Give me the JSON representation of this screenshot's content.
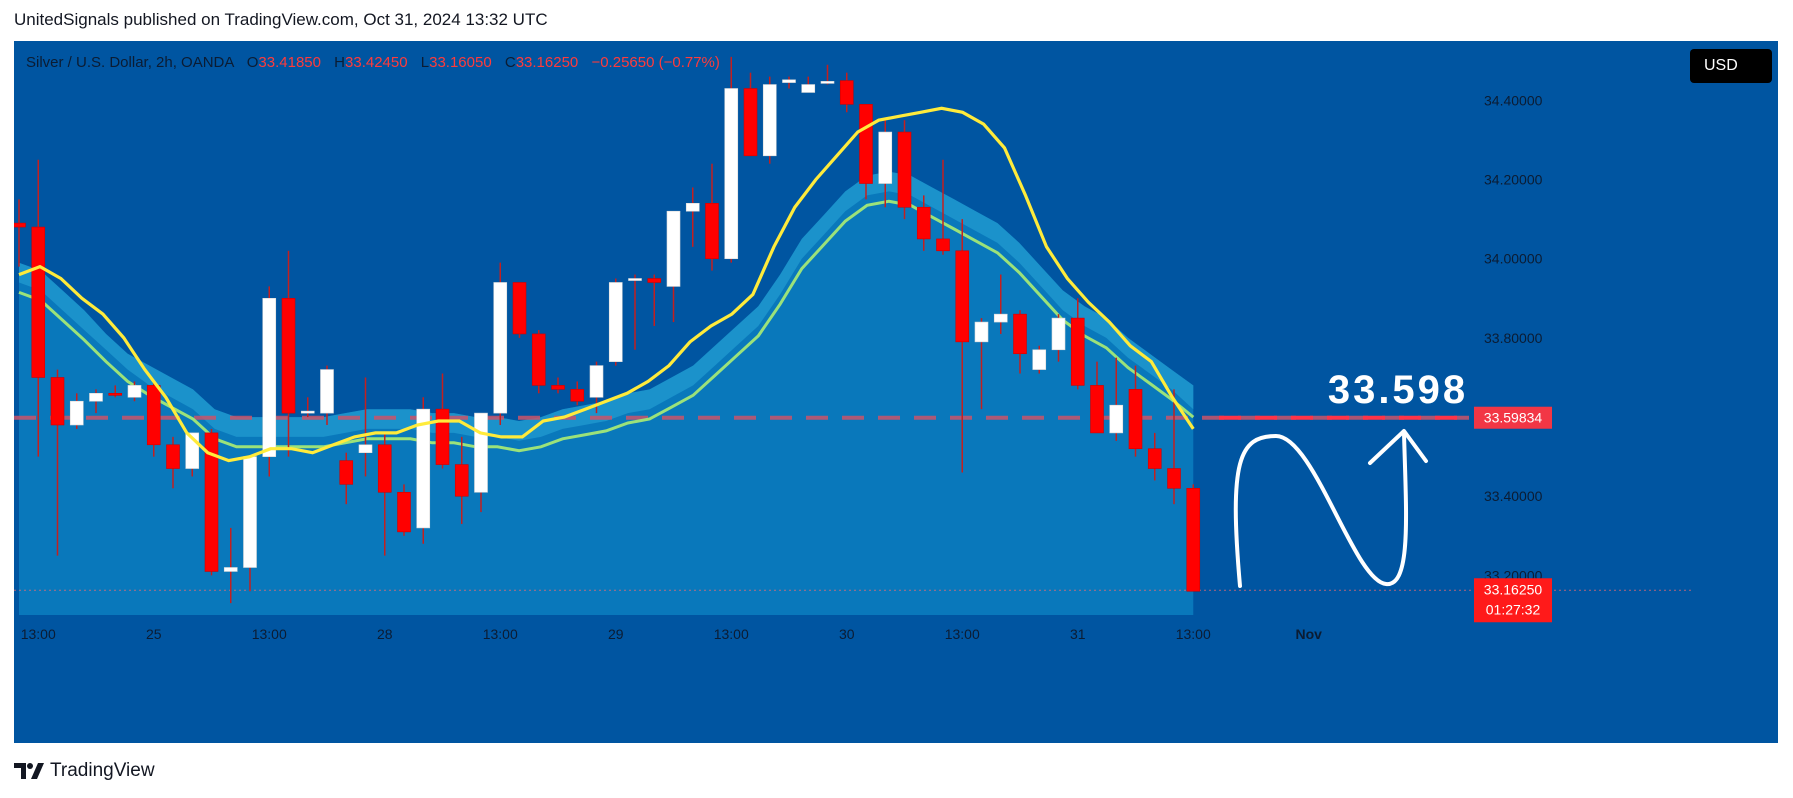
{
  "header": {
    "publisher_line": "UnitedSignals published on TradingView.com, Oct 31, 2024 13:32 UTC"
  },
  "legend": {
    "symbol": "Silver / U.S. Dollar, 2h, OANDA",
    "open_label": "O",
    "open": "33.41850",
    "high_label": "H",
    "high": "33.42450",
    "low_label": "L",
    "low": "33.16050",
    "close_label": "C",
    "close": "33.16250",
    "change": "−0.25650 (−0.77%)"
  },
  "currency_button": "USD",
  "brand": {
    "name": "TradingView"
  },
  "colors": {
    "background": "#0055a1",
    "bull": "#ffffff",
    "bear": "#ff0000",
    "wick": "#c41f1f",
    "ema_fast": "#ffeb3b",
    "ema_slow": "#9be27a",
    "band_fill": "#0a7fbf",
    "level_line": "#ff3347",
    "price_tag": "#ff1a1a",
    "level_tag": "#f23645"
  },
  "chart_data": {
    "type": "candlestick",
    "symbol": "Silver / U.S. Dollar, 2h, OANDA",
    "ylim": [
      33.1,
      34.55
    ],
    "y_ticks": [
      34.4,
      34.2,
      34.0,
      33.8,
      33.4,
      33.2
    ],
    "y_tick_labels": [
      "34.40000",
      "34.20000",
      "34.00000",
      "33.80000",
      "33.40000",
      "33.20000"
    ],
    "x_labels": [
      {
        "i": 1,
        "label": "13:00"
      },
      {
        "i": 7,
        "label": "25"
      },
      {
        "i": 13,
        "label": "13:00"
      },
      {
        "i": 19,
        "label": "28"
      },
      {
        "i": 25,
        "label": "13:00"
      },
      {
        "i": 31,
        "label": "29"
      },
      {
        "i": 37,
        "label": "13:00"
      },
      {
        "i": 43,
        "label": "30"
      },
      {
        "i": 49,
        "label": "13:00"
      },
      {
        "i": 55,
        "label": "31"
      },
      {
        "i": 61,
        "label": "13:00"
      },
      {
        "i": 67,
        "label": "Nov"
      }
    ],
    "candles": [
      {
        "o": 34.09,
        "h": 34.15,
        "l": 33.98,
        "c": 34.08
      },
      {
        "o": 34.08,
        "h": 34.25,
        "l": 33.5,
        "c": 33.7
      },
      {
        "o": 33.7,
        "h": 33.72,
        "l": 33.25,
        "c": 33.58
      },
      {
        "o": 33.58,
        "h": 33.66,
        "l": 33.57,
        "c": 33.64
      },
      {
        "o": 33.64,
        "h": 33.67,
        "l": 33.61,
        "c": 33.66
      },
      {
        "o": 33.66,
        "h": 33.68,
        "l": 33.65,
        "c": 33.655
      },
      {
        "o": 33.65,
        "h": 33.69,
        "l": 33.64,
        "c": 33.68
      },
      {
        "o": 33.68,
        "h": 33.69,
        "l": 33.5,
        "c": 33.53
      },
      {
        "o": 33.53,
        "h": 33.55,
        "l": 33.42,
        "c": 33.47
      },
      {
        "o": 33.47,
        "h": 33.56,
        "l": 33.45,
        "c": 33.56
      },
      {
        "o": 33.56,
        "h": 33.57,
        "l": 33.2,
        "c": 33.21
      },
      {
        "o": 33.21,
        "h": 33.32,
        "l": 33.13,
        "c": 33.22
      },
      {
        "o": 33.22,
        "h": 33.5,
        "l": 33.16,
        "c": 33.5
      },
      {
        "o": 33.5,
        "h": 33.93,
        "l": 33.45,
        "c": 33.9
      },
      {
        "o": 33.9,
        "h": 34.02,
        "l": 33.5,
        "c": 33.61
      },
      {
        "o": 33.61,
        "h": 33.65,
        "l": 33.6,
        "c": 33.615
      },
      {
        "o": 33.61,
        "h": 33.73,
        "l": 33.58,
        "c": 33.72
      },
      {
        "o": 33.49,
        "h": 33.51,
        "l": 33.38,
        "c": 33.43
      },
      {
        "o": 33.51,
        "h": 33.7,
        "l": 33.45,
        "c": 33.53
      },
      {
        "o": 33.53,
        "h": 33.56,
        "l": 33.25,
        "c": 33.41
      },
      {
        "o": 33.41,
        "h": 33.43,
        "l": 33.3,
        "c": 33.31
      },
      {
        "o": 33.32,
        "h": 33.65,
        "l": 33.28,
        "c": 33.62
      },
      {
        "o": 33.62,
        "h": 33.71,
        "l": 33.47,
        "c": 33.48
      },
      {
        "o": 33.48,
        "h": 33.55,
        "l": 33.33,
        "c": 33.4
      },
      {
        "o": 33.41,
        "h": 33.61,
        "l": 33.36,
        "c": 33.61
      },
      {
        "o": 33.61,
        "h": 33.99,
        "l": 33.58,
        "c": 33.94
      },
      {
        "o": 33.94,
        "h": 33.93,
        "l": 33.8,
        "c": 33.81
      },
      {
        "o": 33.81,
        "h": 33.82,
        "l": 33.66,
        "c": 33.68
      },
      {
        "o": 33.68,
        "h": 33.7,
        "l": 33.66,
        "c": 33.67
      },
      {
        "o": 33.67,
        "h": 33.69,
        "l": 33.63,
        "c": 33.64
      },
      {
        "o": 33.65,
        "h": 33.74,
        "l": 33.61,
        "c": 33.73
      },
      {
        "o": 33.74,
        "h": 33.95,
        "l": 33.73,
        "c": 33.94
      },
      {
        "o": 33.95,
        "h": 33.96,
        "l": 33.77,
        "c": 33.95
      },
      {
        "o": 33.95,
        "h": 33.96,
        "l": 33.83,
        "c": 33.94
      },
      {
        "o": 33.93,
        "h": 34.12,
        "l": 33.84,
        "c": 34.12
      },
      {
        "o": 34.12,
        "h": 34.18,
        "l": 34.03,
        "c": 34.14
      },
      {
        "o": 34.14,
        "h": 34.24,
        "l": 33.97,
        "c": 34.0
      },
      {
        "o": 34.0,
        "h": 34.51,
        "l": 33.99,
        "c": 34.43
      },
      {
        "o": 34.43,
        "h": 34.47,
        "l": 34.26,
        "c": 34.26
      },
      {
        "o": 34.26,
        "h": 34.46,
        "l": 34.24,
        "c": 34.44
      },
      {
        "o": 34.445,
        "h": 34.46,
        "l": 34.43,
        "c": 34.452
      },
      {
        "o": 34.42,
        "h": 34.46,
        "l": 34.42,
        "c": 34.44
      },
      {
        "o": 34.445,
        "h": 34.49,
        "l": 34.44,
        "c": 34.448
      },
      {
        "o": 34.45,
        "h": 34.47,
        "l": 34.37,
        "c": 34.39
      },
      {
        "o": 34.39,
        "h": 34.39,
        "l": 34.15,
        "c": 34.19
      },
      {
        "o": 34.19,
        "h": 34.35,
        "l": 34.13,
        "c": 34.32
      },
      {
        "o": 34.32,
        "h": 34.35,
        "l": 34.1,
        "c": 34.13
      },
      {
        "o": 34.13,
        "h": 34.16,
        "l": 34.02,
        "c": 34.05
      },
      {
        "o": 34.05,
        "h": 34.25,
        "l": 34.01,
        "c": 34.02
      },
      {
        "o": 34.02,
        "h": 34.1,
        "l": 33.46,
        "c": 33.79
      },
      {
        "o": 33.79,
        "h": 33.85,
        "l": 33.62,
        "c": 33.84
      },
      {
        "o": 33.84,
        "h": 33.96,
        "l": 33.81,
        "c": 33.86
      },
      {
        "o": 33.86,
        "h": 33.87,
        "l": 33.71,
        "c": 33.76
      },
      {
        "o": 33.72,
        "h": 33.78,
        "l": 33.71,
        "c": 33.77
      },
      {
        "o": 33.77,
        "h": 33.86,
        "l": 33.74,
        "c": 33.85
      },
      {
        "o": 33.85,
        "h": 33.9,
        "l": 33.67,
        "c": 33.68
      },
      {
        "o": 33.68,
        "h": 33.74,
        "l": 33.56,
        "c": 33.56
      },
      {
        "o": 33.56,
        "h": 33.75,
        "l": 33.54,
        "c": 33.63
      },
      {
        "o": 33.67,
        "h": 33.73,
        "l": 33.5,
        "c": 33.52
      },
      {
        "o": 33.52,
        "h": 33.56,
        "l": 33.44,
        "c": 33.47
      },
      {
        "o": 33.47,
        "h": 33.67,
        "l": 33.38,
        "c": 33.42
      },
      {
        "o": 33.42,
        "h": 33.43,
        "l": 33.16,
        "c": 33.16
      }
    ],
    "ema_fast": [
      33.96,
      33.98,
      33.95,
      33.9,
      33.86,
      33.8,
      33.72,
      33.65,
      33.56,
      33.51,
      33.49,
      33.5,
      33.52,
      33.52,
      33.51,
      33.53,
      33.55,
      33.56,
      33.56,
      33.58,
      33.59,
      33.59,
      33.56,
      33.55,
      33.55,
      33.59,
      33.6,
      33.62,
      33.64,
      33.66,
      33.69,
      33.73,
      33.79,
      33.83,
      33.86,
      33.91,
      34.03,
      34.13,
      34.2,
      34.26,
      34.32,
      34.35,
      34.36,
      34.37,
      34.38,
      34.37,
      34.34,
      34.28,
      34.16,
      34.03,
      33.95,
      33.89,
      33.84,
      33.78,
      33.74,
      33.65,
      33.57
    ],
    "ema_slow_top": [
      33.99,
      33.97,
      33.92,
      33.87,
      33.81,
      33.76,
      33.73,
      33.7,
      33.67,
      33.62,
      33.6,
      33.6,
      33.6,
      33.6,
      33.6,
      33.61,
      33.62,
      33.62,
      33.62,
      33.61,
      33.61,
      33.6,
      33.6,
      33.59,
      33.6,
      33.62,
      33.63,
      33.64,
      33.66,
      33.67,
      33.7,
      33.73,
      33.78,
      33.83,
      33.88,
      33.96,
      34.05,
      34.11,
      34.17,
      34.21,
      34.22,
      34.21,
      34.18,
      34.15,
      34.12,
      34.09,
      34.04,
      33.98,
      33.92,
      33.88,
      33.85,
      33.8,
      33.76,
      33.72,
      33.68
    ],
    "ema_slow_bottom": [
      33.94,
      33.92,
      33.87,
      33.82,
      33.77,
      33.72,
      33.68,
      33.65,
      33.62,
      33.57,
      33.55,
      33.55,
      33.55,
      33.55,
      33.55,
      33.56,
      33.57,
      33.57,
      33.57,
      33.56,
      33.56,
      33.55,
      33.55,
      33.54,
      33.55,
      33.57,
      33.58,
      33.59,
      33.61,
      33.62,
      33.65,
      33.68,
      33.73,
      33.78,
      33.83,
      33.91,
      34.0,
      34.06,
      34.12,
      34.16,
      34.17,
      34.16,
      34.13,
      34.1,
      34.07,
      34.04,
      33.99,
      33.93,
      33.87,
      33.83,
      33.8,
      33.75,
      33.71,
      33.67,
      33.62
    ],
    "horizontal_level": 33.59834,
    "level_tag": "33.59834",
    "last_price_tag": "33.16250",
    "countdown": "01:27:32",
    "annotation_text": "33.598"
  }
}
